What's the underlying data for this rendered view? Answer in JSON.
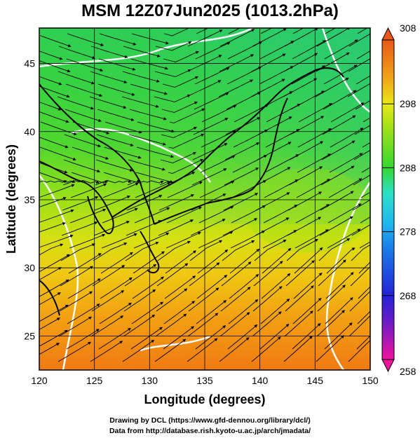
{
  "title": "MSM 12Z07Jun2025 (1013.2hPa)",
  "map": {
    "x_axis_label": "Longitude (degrees)",
    "y_axis_label": "Latitude  (degrees)",
    "lon_range": [
      120,
      150
    ],
    "lat_range": [
      22.5,
      47.6
    ],
    "lon_ticks": [
      "120",
      "125",
      "130",
      "135",
      "140",
      "145",
      "150"
    ],
    "lat_ticks": [
      "25",
      "30",
      "35",
      "40",
      "45"
    ],
    "field": "temperature (K) shaded with wind streamlines",
    "grid": true
  },
  "colorbar": {
    "range": [
      258,
      308
    ],
    "labels": [
      "308",
      "298",
      "288",
      "278",
      "268",
      "258"
    ],
    "stops": [
      "#f0139c",
      "#2323d6",
      "#20b4f0",
      "#2ce0c8",
      "#34d830",
      "#e8e818",
      "#f0a418",
      "#e85818"
    ]
  },
  "credits": {
    "line1": "Drawing by DCL (https://www.gfd-dennou.org/library/dcl/)",
    "line2": "Data from http://database.rish.kyoto-u.ac.jp/arch/jmadata/"
  }
}
